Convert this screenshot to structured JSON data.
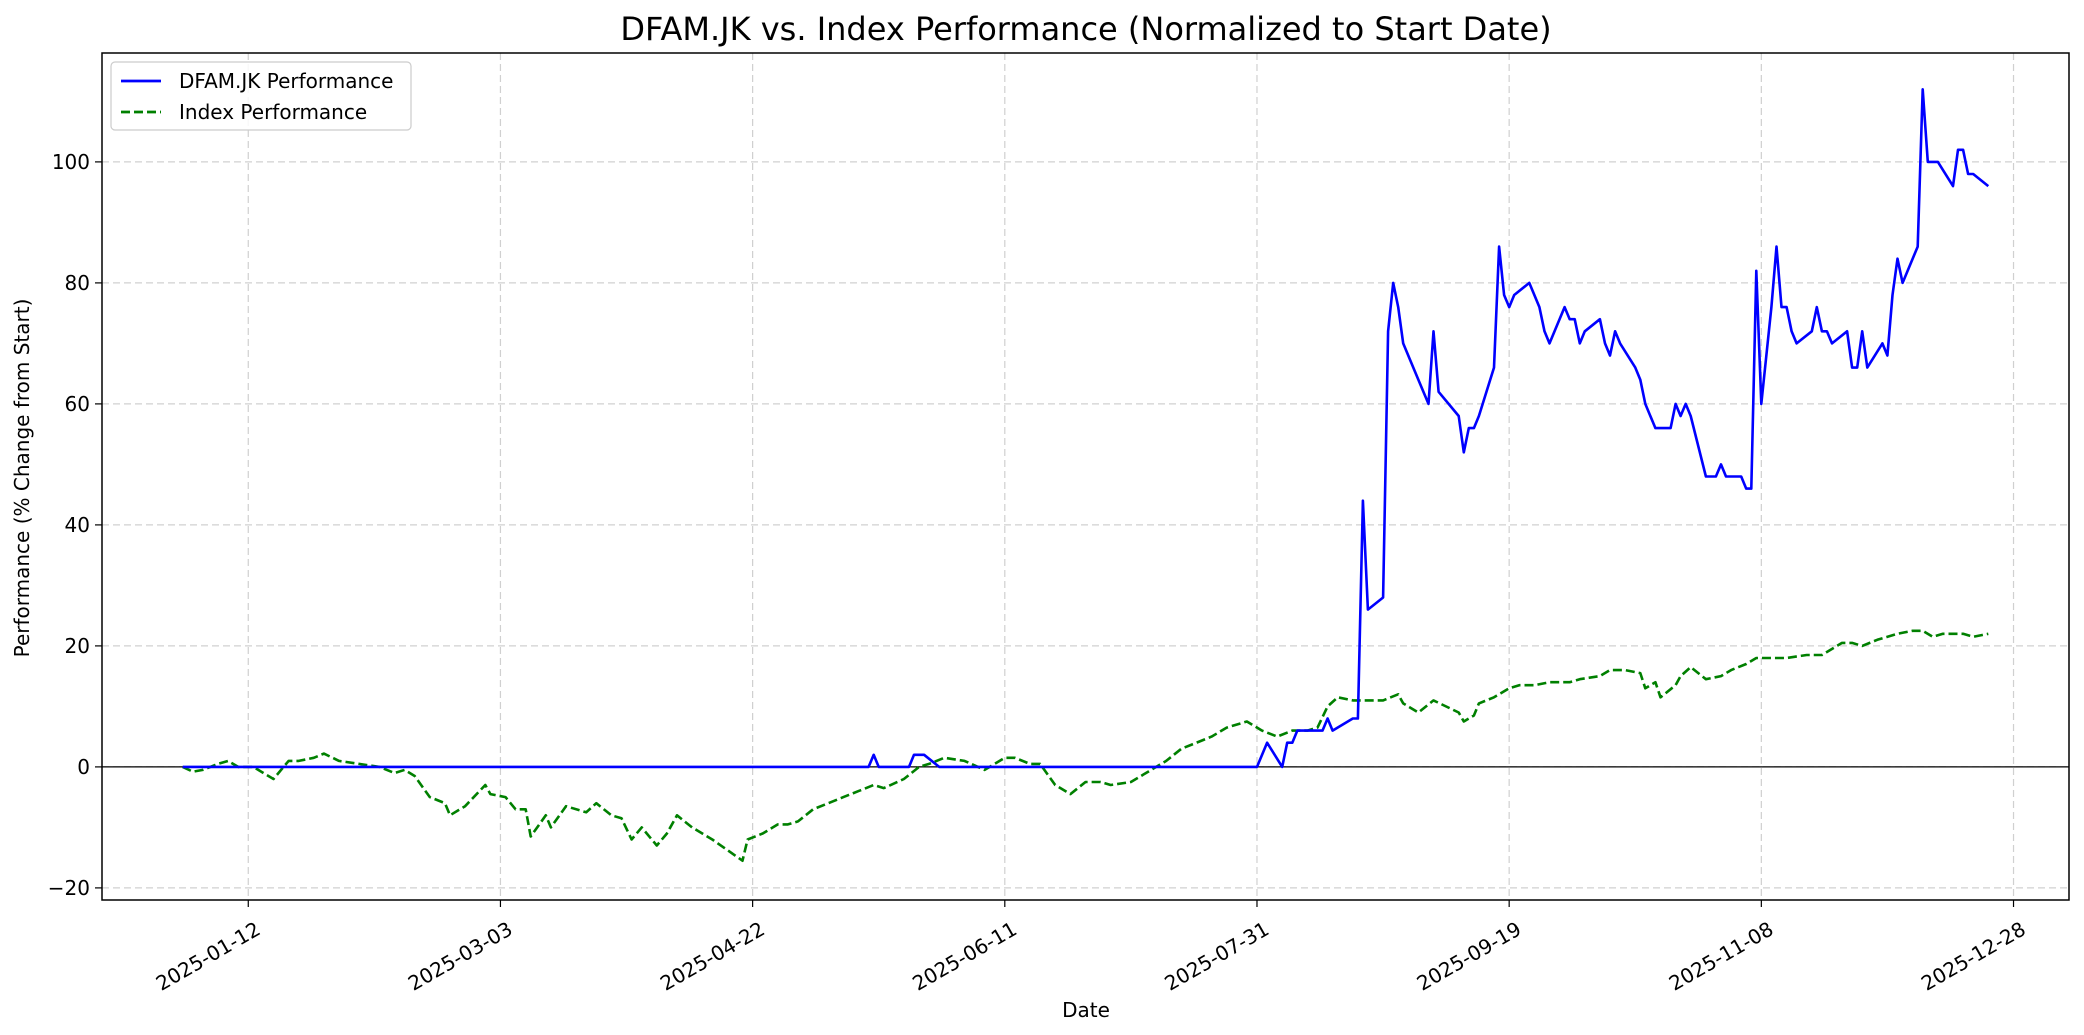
{
  "chart_data": {
    "type": "line",
    "title": "DFAM.JK vs. Index Performance (Normalized to Start Date)",
    "xlabel": "Date",
    "ylabel": "Performance (% Change from Start)",
    "xlim": [
      "2024-12-14",
      "2026-01-08"
    ],
    "ylim": [
      -22,
      118
    ],
    "x_ticks": [
      "2025-01-12",
      "2025-03-03",
      "2025-04-22",
      "2025-06-11",
      "2025-07-31",
      "2025-09-19",
      "2025-11-08",
      "2025-12-28"
    ],
    "y_ticks": [
      -20,
      0,
      20,
      40,
      60,
      80,
      100
    ],
    "grid": true,
    "legend_position": "top-left",
    "reference_line_y": 0,
    "series": [
      {
        "name": "DFAM.JK Performance",
        "color": "#0000ff",
        "style": "solid",
        "points": [
          [
            "2024-12-30",
            0
          ],
          [
            "2025-05-15",
            0
          ],
          [
            "2025-05-16",
            2
          ],
          [
            "2025-05-17",
            0
          ],
          [
            "2025-05-23",
            0
          ],
          [
            "2025-05-24",
            2
          ],
          [
            "2025-05-26",
            2
          ],
          [
            "2025-05-29",
            0
          ],
          [
            "2025-07-31",
            0
          ],
          [
            "2025-08-02",
            4
          ],
          [
            "2025-08-05",
            0
          ],
          [
            "2025-08-06",
            4
          ],
          [
            "2025-08-07",
            4
          ],
          [
            "2025-08-08",
            6
          ],
          [
            "2025-08-13",
            6
          ],
          [
            "2025-08-14",
            8
          ],
          [
            "2025-08-15",
            6
          ],
          [
            "2025-08-19",
            8
          ],
          [
            "2025-08-20",
            8
          ],
          [
            "2025-08-21",
            44
          ],
          [
            "2025-08-22",
            26
          ],
          [
            "2025-08-25",
            28
          ],
          [
            "2025-08-26",
            72
          ],
          [
            "2025-08-27",
            80
          ],
          [
            "2025-08-28",
            76
          ],
          [
            "2025-08-29",
            70
          ],
          [
            "2025-09-02",
            62
          ],
          [
            "2025-09-03",
            60
          ],
          [
            "2025-09-04",
            72
          ],
          [
            "2025-09-05",
            62
          ],
          [
            "2025-09-09",
            58
          ],
          [
            "2025-09-10",
            52
          ],
          [
            "2025-09-11",
            56
          ],
          [
            "2025-09-12",
            56
          ],
          [
            "2025-09-13",
            58
          ],
          [
            "2025-09-16",
            66
          ],
          [
            "2025-09-17",
            86
          ],
          [
            "2025-09-18",
            78
          ],
          [
            "2025-09-19",
            76
          ],
          [
            "2025-09-20",
            78
          ],
          [
            "2025-09-23",
            80
          ],
          [
            "2025-09-25",
            76
          ],
          [
            "2025-09-26",
            72
          ],
          [
            "2025-09-27",
            70
          ],
          [
            "2025-09-30",
            76
          ],
          [
            "2025-10-01",
            74
          ],
          [
            "2025-10-02",
            74
          ],
          [
            "2025-10-03",
            70
          ],
          [
            "2025-10-04",
            72
          ],
          [
            "2025-10-07",
            74
          ],
          [
            "2025-10-08",
            70
          ],
          [
            "2025-10-09",
            68
          ],
          [
            "2025-10-10",
            72
          ],
          [
            "2025-10-11",
            70
          ],
          [
            "2025-10-14",
            66
          ],
          [
            "2025-10-15",
            64
          ],
          [
            "2025-10-16",
            60
          ],
          [
            "2025-10-18",
            56
          ],
          [
            "2025-10-21",
            56
          ],
          [
            "2025-10-22",
            60
          ],
          [
            "2025-10-23",
            58
          ],
          [
            "2025-10-24",
            60
          ],
          [
            "2025-10-25",
            58
          ],
          [
            "2025-10-28",
            48
          ],
          [
            "2025-10-30",
            48
          ],
          [
            "2025-10-31",
            50
          ],
          [
            "2025-11-01",
            48
          ],
          [
            "2025-11-04",
            48
          ],
          [
            "2025-11-05",
            46
          ],
          [
            "2025-11-06",
            46
          ],
          [
            "2025-11-07",
            82
          ],
          [
            "2025-11-08",
            60
          ],
          [
            "2025-11-10",
            76
          ],
          [
            "2025-11-11",
            86
          ],
          [
            "2025-11-12",
            76
          ],
          [
            "2025-11-13",
            76
          ],
          [
            "2025-11-14",
            72
          ],
          [
            "2025-11-15",
            70
          ],
          [
            "2025-11-18",
            72
          ],
          [
            "2025-11-19",
            76
          ],
          [
            "2025-11-20",
            72
          ],
          [
            "2025-11-21",
            72
          ],
          [
            "2025-11-22",
            70
          ],
          [
            "2025-11-25",
            72
          ],
          [
            "2025-11-26",
            66
          ],
          [
            "2025-11-27",
            66
          ],
          [
            "2025-11-28",
            72
          ],
          [
            "2025-11-29",
            66
          ],
          [
            "2025-12-02",
            70
          ],
          [
            "2025-12-03",
            68
          ],
          [
            "2025-12-04",
            78
          ],
          [
            "2025-12-05",
            84
          ],
          [
            "2025-12-06",
            80
          ],
          [
            "2025-12-09",
            86
          ],
          [
            "2025-12-10",
            112
          ],
          [
            "2025-12-11",
            100
          ],
          [
            "2025-12-13",
            100
          ],
          [
            "2025-12-16",
            96
          ],
          [
            "2025-12-17",
            102
          ],
          [
            "2025-12-18",
            102
          ],
          [
            "2025-12-19",
            98
          ],
          [
            "2025-12-20",
            98
          ],
          [
            "2025-12-23",
            96
          ]
        ]
      },
      {
        "name": "Index Performance",
        "color": "#008000",
        "style": "dashed",
        "points": [
          [
            "2024-12-30",
            0
          ],
          [
            "2025-01-01",
            -0.8
          ],
          [
            "2025-01-03",
            -0.5
          ],
          [
            "2025-01-06",
            0.5
          ],
          [
            "2025-01-08",
            1
          ],
          [
            "2025-01-10",
            0
          ],
          [
            "2025-01-13",
            0
          ],
          [
            "2025-01-15",
            -1
          ],
          [
            "2025-01-17",
            -2
          ],
          [
            "2025-01-20",
            1
          ],
          [
            "2025-01-22",
            1
          ],
          [
            "2025-01-25",
            1.5
          ],
          [
            "2025-01-27",
            2.2
          ],
          [
            "2025-01-30",
            1
          ],
          [
            "2025-02-03",
            0.5
          ],
          [
            "2025-02-07",
            0
          ],
          [
            "2025-02-10",
            -1
          ],
          [
            "2025-02-12",
            -0.5
          ],
          [
            "2025-02-14",
            -1.5
          ],
          [
            "2025-02-17",
            -5
          ],
          [
            "2025-02-20",
            -6
          ],
          [
            "2025-02-21",
            -8
          ],
          [
            "2025-02-24",
            -6.5
          ],
          [
            "2025-02-28",
            -3
          ],
          [
            "2025-03-01",
            -4.5
          ],
          [
            "2025-03-04",
            -5
          ],
          [
            "2025-03-06",
            -7
          ],
          [
            "2025-03-08",
            -7
          ],
          [
            "2025-03-09",
            -11.5
          ],
          [
            "2025-03-12",
            -8
          ],
          [
            "2025-03-13",
            -10
          ],
          [
            "2025-03-16",
            -6.5
          ],
          [
            "2025-03-20",
            -7.5
          ],
          [
            "2025-03-22",
            -6
          ],
          [
            "2025-03-25",
            -8
          ],
          [
            "2025-03-27",
            -8.5
          ],
          [
            "2025-03-29",
            -12
          ],
          [
            "2025-03-31",
            -10
          ],
          [
            "2025-04-03",
            -13
          ],
          [
            "2025-04-05",
            -11
          ],
          [
            "2025-04-07",
            -8
          ],
          [
            "2025-04-10",
            -10
          ],
          [
            "2025-04-14",
            -12
          ],
          [
            "2025-04-20",
            -15.5
          ],
          [
            "2025-04-21",
            -12
          ],
          [
            "2025-04-24",
            -11
          ],
          [
            "2025-04-27",
            -9.5
          ],
          [
            "2025-04-29",
            -9.5
          ],
          [
            "2025-05-01",
            -9
          ],
          [
            "2025-05-04",
            -7
          ],
          [
            "2025-05-07",
            -6
          ],
          [
            "2025-05-10",
            -5
          ],
          [
            "2025-05-13",
            -4
          ],
          [
            "2025-05-16",
            -3
          ],
          [
            "2025-05-18",
            -3.5
          ],
          [
            "2025-05-22",
            -2
          ],
          [
            "2025-05-25",
            0
          ],
          [
            "2025-05-27",
            0.5
          ],
          [
            "2025-05-30",
            1.5
          ],
          [
            "2025-06-03",
            1
          ],
          [
            "2025-06-07",
            -0.5
          ],
          [
            "2025-06-11",
            1.5
          ],
          [
            "2025-06-13",
            1.5
          ],
          [
            "2025-06-16",
            0.5
          ],
          [
            "2025-06-18",
            0.5
          ],
          [
            "2025-06-21",
            -3
          ],
          [
            "2025-06-24",
            -4.5
          ],
          [
            "2025-06-27",
            -2.5
          ],
          [
            "2025-06-30",
            -2.5
          ],
          [
            "2025-07-02",
            -3
          ],
          [
            "2025-07-06",
            -2.5
          ],
          [
            "2025-07-09",
            -1
          ],
          [
            "2025-07-13",
            1
          ],
          [
            "2025-07-16",
            3
          ],
          [
            "2025-07-19",
            4
          ],
          [
            "2025-07-22",
            5
          ],
          [
            "2025-07-25",
            6.5
          ],
          [
            "2025-07-29",
            7.5
          ],
          [
            "2025-08-01",
            6
          ],
          [
            "2025-08-04",
            5
          ],
          [
            "2025-08-07",
            6
          ],
          [
            "2025-08-10",
            6
          ],
          [
            "2025-08-12",
            6.5
          ],
          [
            "2025-08-14",
            10
          ],
          [
            "2025-08-16",
            11.5
          ],
          [
            "2025-08-19",
            11
          ],
          [
            "2025-08-22",
            11
          ],
          [
            "2025-08-25",
            11
          ],
          [
            "2025-08-28",
            12
          ],
          [
            "2025-08-29",
            10.5
          ],
          [
            "2025-09-01",
            9
          ],
          [
            "2025-09-04",
            11
          ],
          [
            "2025-09-09",
            9
          ],
          [
            "2025-09-10",
            7.5
          ],
          [
            "2025-09-12",
            8.5
          ],
          [
            "2025-09-13",
            10.5
          ],
          [
            "2025-09-16",
            11.5
          ],
          [
            "2025-09-19",
            13
          ],
          [
            "2025-09-21",
            13.5
          ],
          [
            "2025-09-24",
            13.5
          ],
          [
            "2025-09-27",
            14
          ],
          [
            "2025-10-01",
            14
          ],
          [
            "2025-10-03",
            14.5
          ],
          [
            "2025-10-07",
            15
          ],
          [
            "2025-10-09",
            16
          ],
          [
            "2025-10-12",
            16
          ],
          [
            "2025-10-15",
            15.5
          ],
          [
            "2025-10-16",
            13
          ],
          [
            "2025-10-18",
            14
          ],
          [
            "2025-10-19",
            11.5
          ],
          [
            "2025-10-22",
            13.5
          ],
          [
            "2025-10-23",
            15
          ],
          [
            "2025-10-25",
            16.5
          ],
          [
            "2025-10-28",
            14.5
          ],
          [
            "2025-10-31",
            15
          ],
          [
            "2025-11-02",
            16
          ],
          [
            "2025-11-05",
            17
          ],
          [
            "2025-11-07",
            18
          ],
          [
            "2025-11-10",
            18
          ],
          [
            "2025-11-13",
            18
          ],
          [
            "2025-11-17",
            18.5
          ],
          [
            "2025-11-20",
            18.5
          ],
          [
            "2025-11-24",
            20.5
          ],
          [
            "2025-11-26",
            20.5
          ],
          [
            "2025-11-28",
            20
          ],
          [
            "2025-12-01",
            21
          ],
          [
            "2025-12-05",
            22
          ],
          [
            "2025-12-08",
            22.5
          ],
          [
            "2025-12-10",
            22.5
          ],
          [
            "2025-12-12",
            21.5
          ],
          [
            "2025-12-14",
            22
          ],
          [
            "2025-12-16",
            22
          ],
          [
            "2025-12-18",
            22
          ],
          [
            "2025-12-20",
            21.5
          ],
          [
            "2025-12-23",
            22
          ]
        ]
      }
    ]
  }
}
